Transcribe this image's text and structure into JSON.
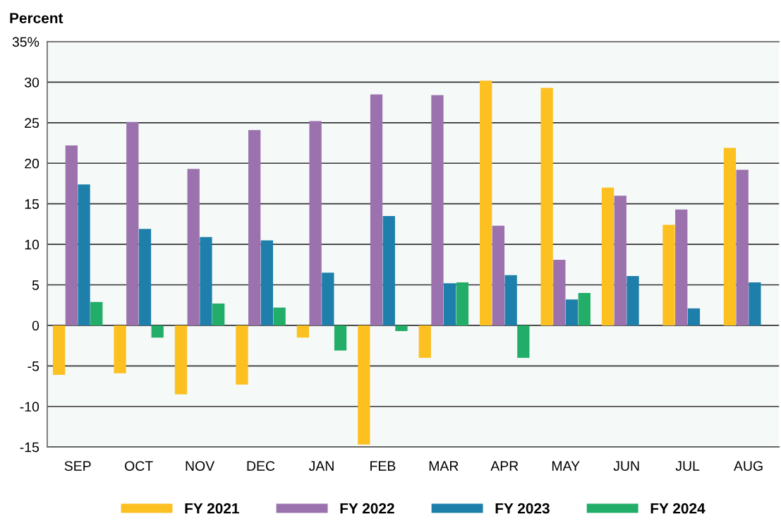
{
  "chart_data": {
    "type": "bar",
    "ylabel": "Percent",
    "categories": [
      "SEP",
      "OCT",
      "NOV",
      "DEC",
      "JAN",
      "FEB",
      "MAR",
      "APR",
      "MAY",
      "JUN",
      "JUL",
      "AUG"
    ],
    "series": [
      {
        "name": "FY 2021",
        "color": "#fcc020",
        "values": [
          -6.1,
          -5.9,
          -8.5,
          -7.3,
          -1.5,
          -14.7,
          -4.0,
          30.2,
          29.3,
          17.0,
          12.4,
          21.9
        ]
      },
      {
        "name": "FY 2022",
        "color": "#9b72ae",
        "values": [
          22.2,
          25.1,
          19.3,
          24.1,
          25.2,
          28.5,
          28.4,
          12.3,
          8.1,
          16.0,
          14.3,
          19.2
        ]
      },
      {
        "name": "FY 2023",
        "color": "#1f7fab",
        "values": [
          17.4,
          11.9,
          10.9,
          10.5,
          6.5,
          13.5,
          5.2,
          6.2,
          3.2,
          6.1,
          2.1,
          5.3
        ]
      },
      {
        "name": "FY 2024",
        "color": "#22ae68",
        "values": [
          2.9,
          -1.5,
          2.7,
          2.2,
          -3.1,
          -0.7,
          5.3,
          -4.0,
          4.0,
          null,
          null,
          null
        ]
      }
    ],
    "ylim": [
      -15,
      35
    ],
    "yticks": [
      -15,
      -10,
      -5,
      0,
      5,
      10,
      15,
      20,
      25,
      30,
      {
        "value": 35,
        "label": "35%"
      }
    ],
    "grid": "y",
    "legend": "bottom"
  }
}
